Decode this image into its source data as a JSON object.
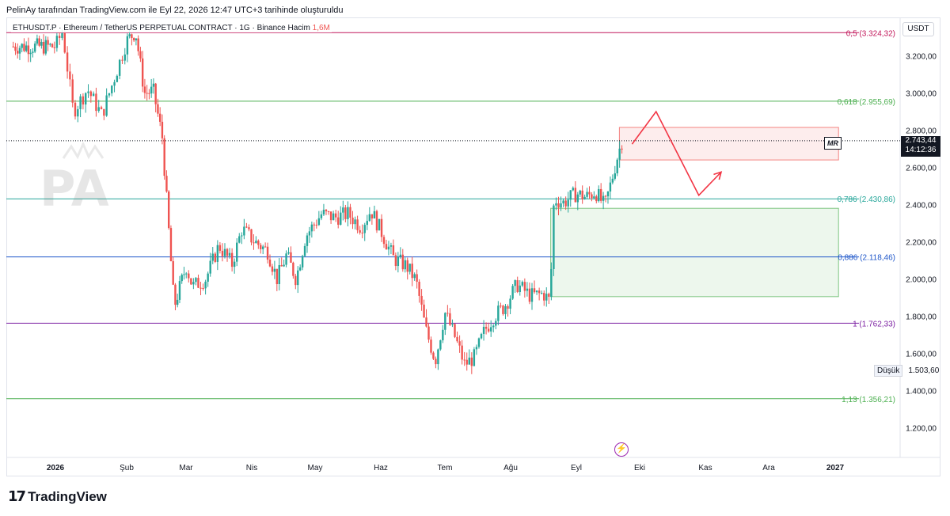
{
  "header": {
    "text": "PelinAy tarafından TradingView.com ile Eyl 22, 2026 12:47 UTC+3 tarihinde oluşturuldu"
  },
  "symbol": {
    "text": "ETHUSDT.P · Ethereum / TetherUS PERPETUAL CONTRACT · 1G · Binance",
    "volume_label": "Hacim",
    "volume_value": "1,6M"
  },
  "unit": "USDT",
  "footer": {
    "logo_mark": "17",
    "logo_name": "TradingView"
  },
  "price_tag": {
    "price": "2.743,44",
    "countdown": "14:12:36"
  },
  "low_tag": {
    "label": "Düşük",
    "value": "1.503,60"
  },
  "mr_label": "MR",
  "colors": {
    "up": "#26a69a",
    "down": "#ef5350",
    "zone_red": "#ef5350",
    "zone_green": "#4caf50"
  },
  "chart_data": {
    "type": "candlestick",
    "y_axis": {
      "ticks": [
        1200,
        1400,
        1600,
        1800,
        2000,
        2200,
        2400,
        2600,
        2800,
        3000,
        3200
      ],
      "tick_labels": [
        "1.200,00",
        "1.400,00",
        "1.600,00",
        "1.800,00",
        "2.000,00",
        "2.200,00",
        "2.400,00",
        "2.600,00",
        "2.800,00",
        "3.000,00",
        "3.200,00"
      ],
      "range": [
        1040,
        3440
      ]
    },
    "x_axis": {
      "labels": [
        "2026",
        "Şub",
        "Mar",
        "Nis",
        "May",
        "Haz",
        "Tem",
        "Ağu",
        "Eyl",
        "Eki",
        "Kas",
        "Ara",
        "2027"
      ],
      "bold": [
        true,
        false,
        false,
        false,
        false,
        false,
        false,
        false,
        false,
        false,
        false,
        false,
        true
      ]
    },
    "fib_levels": [
      {
        "label": "0,5 (3.324,32)",
        "value": 3324.32,
        "color": "#c2185b"
      },
      {
        "label": "0,618 (2.955,69)",
        "value": 2955.69,
        "color": "#4caf50"
      },
      {
        "label": "0,786 (2.430,86)",
        "value": 2430.86,
        "color": "#26a69a"
      },
      {
        "label": "0,886 (2.118,46)",
        "value": 2118.46,
        "color": "#1e56c9"
      },
      {
        "label": "1 (1.762,33)",
        "value": 1762.33,
        "color": "#7b1fa2"
      },
      {
        "label": "1,13 (1.356,21)",
        "value": 1356.21,
        "color": "#4caf50"
      }
    ],
    "zones": [
      {
        "name": "supply",
        "from_month": 8.68,
        "to_month": 12.05,
        "low": 2640,
        "high": 2815,
        "color": "#ef5350"
      },
      {
        "name": "demand",
        "from_month": 7.61,
        "to_month": 12.05,
        "low": 1905,
        "high": 2380,
        "color": "#4caf50"
      }
    ],
    "projection": [
      {
        "month": 8.88,
        "price": 2725
      },
      {
        "month": 9.25,
        "price": 2900
      },
      {
        "month": 9.9,
        "price": 2450
      },
      {
        "month": 10.25,
        "price": 2575
      }
    ],
    "ohlc_path": [
      [
        0.0,
        3250
      ],
      [
        0.1,
        3330
      ],
      [
        0.25,
        2900
      ],
      [
        0.45,
        3020
      ],
      [
        0.65,
        2880
      ],
      [
        0.8,
        3050
      ],
      [
        1.0,
        3280
      ],
      [
        1.15,
        3330
      ],
      [
        1.3,
        3000
      ],
      [
        1.45,
        3010
      ],
      [
        1.6,
        2760
      ],
      [
        1.7,
        2300
      ],
      [
        1.8,
        1850
      ],
      [
        2.0,
        2070
      ],
      [
        2.1,
        1960
      ],
      [
        2.3,
        2000
      ],
      [
        2.5,
        2180
      ],
      [
        2.7,
        2080
      ],
      [
        2.85,
        2270
      ],
      [
        3.05,
        2200
      ],
      [
        3.25,
        2150
      ],
      [
        3.4,
        2000
      ],
      [
        3.55,
        2130
      ],
      [
        3.7,
        2000
      ],
      [
        3.85,
        2230
      ],
      [
        4.1,
        2350
      ],
      [
        4.3,
        2330
      ],
      [
        4.5,
        2350
      ],
      [
        4.7,
        2280
      ],
      [
        4.85,
        2370
      ],
      [
        5.0,
        2260
      ],
      [
        5.2,
        2110
      ],
      [
        5.4,
        2070
      ],
      [
        5.55,
        1990
      ],
      [
        5.7,
        1730
      ],
      [
        5.85,
        1560
      ],
      [
        6.0,
        1820
      ],
      [
        6.15,
        1690
      ],
      [
        6.3,
        1540
      ],
      [
        6.45,
        1580
      ],
      [
        6.6,
        1720
      ],
      [
        6.75,
        1800
      ],
      [
        6.9,
        1850
      ],
      [
        7.1,
        1970
      ],
      [
        7.3,
        1910
      ],
      [
        7.5,
        1920
      ],
      [
        7.6,
        1880
      ],
      [
        7.66,
        2430
      ],
      [
        7.8,
        2410
      ],
      [
        8.0,
        2460
      ],
      [
        8.15,
        2440
      ],
      [
        8.3,
        2470
      ],
      [
        8.45,
        2390
      ],
      [
        8.55,
        2520
      ],
      [
        8.65,
        2660
      ],
      [
        8.72,
        2743
      ]
    ]
  }
}
